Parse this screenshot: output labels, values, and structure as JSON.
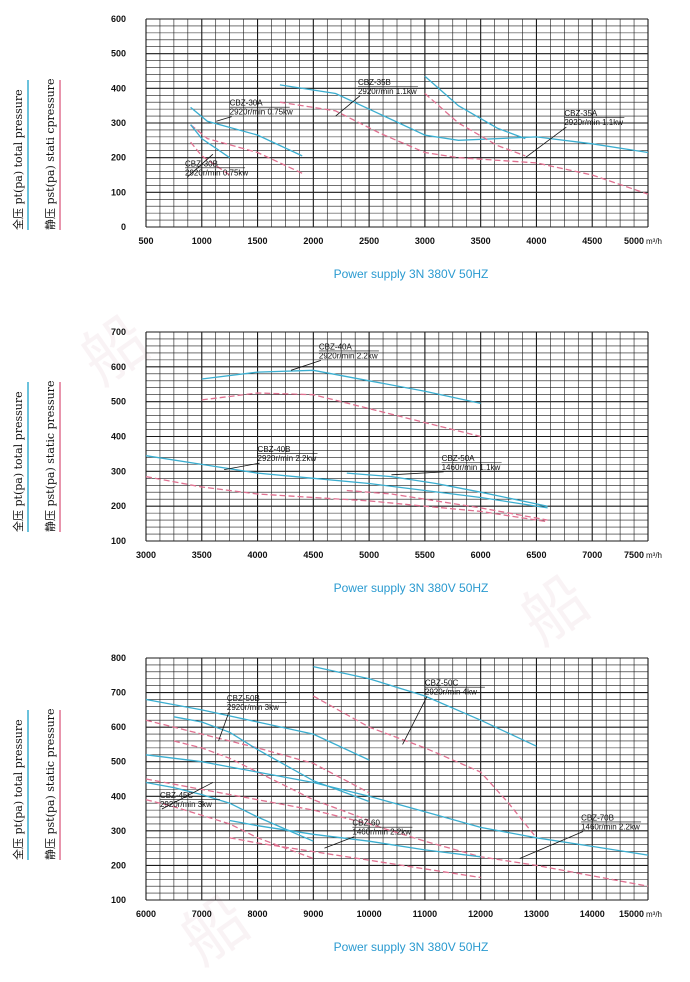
{
  "watermarks": [
    "船",
    "船",
    "船"
  ],
  "colors": {
    "total": "#3aaed0",
    "static": "#e07090",
    "grid": "#1a1a1a",
    "supply": "#2a9ad0"
  },
  "charts": [
    {
      "legend_total": "全压 pt(pa)  total pressure",
      "legend_static": "静压 pst(pa)  stati cpressure",
      "x_unit": "m³/h",
      "power_supply": "Power supply   3N 380V  50HZ",
      "chart_data": {
        "type": "line",
        "xlim": [
          500,
          5000
        ],
        "ylim": [
          0,
          600
        ],
        "x_ticks": [
          500,
          1000,
          1500,
          2000,
          2500,
          3000,
          3500,
          4000,
          4500,
          5000
        ],
        "y_ticks": [
          0,
          100,
          200,
          300,
          400,
          500,
          600
        ],
        "series": [
          {
            "kind": "total",
            "x": [
              900,
              1050,
              1500,
              1900
            ],
            "y": [
              345,
              305,
              265,
              205
            ]
          },
          {
            "kind": "static",
            "x": [
              900,
              1050,
              1500,
              1900
            ],
            "y": [
              295,
              255,
              215,
              155
            ]
          },
          {
            "kind": "total",
            "x": [
              900,
              1000,
              1250
            ],
            "y": [
              295,
              255,
              200
            ]
          },
          {
            "kind": "static",
            "x": [
              900,
              1000,
              1250
            ],
            "y": [
              245,
              205,
              150
            ]
          },
          {
            "kind": "total",
            "x": [
              1700,
              2200,
              2600,
              3000,
              3300,
              4000,
              4500,
              5000
            ],
            "y": [
              410,
              385,
              325,
              265,
              250,
              260,
              240,
              215
            ]
          },
          {
            "kind": "static",
            "x": [
              1700,
              2200,
              2600,
              3000,
              3300,
              4000,
              4500,
              5000
            ],
            "y": [
              360,
              335,
              270,
              215,
              200,
              185,
              150,
              95
            ]
          },
          {
            "kind": "total",
            "x": [
              3000,
              3300,
              3650,
              3900
            ],
            "y": [
              435,
              350,
              285,
              255
            ]
          },
          {
            "kind": "static",
            "x": [
              3000,
              3300,
              3650,
              3900
            ],
            "y": [
              385,
              300,
              235,
              205
            ]
          }
        ]
      },
      "labels": [
        {
          "model": "CBZ-30A",
          "spec": "2920r/min 0.75kw",
          "x": 1250,
          "y": 350,
          "lx": 1130,
          "ly": 305
        },
        {
          "model": "CBZ-30B",
          "spec": "2920r/min 0.75kw",
          "x": 850,
          "y": 175,
          "lx": 1100,
          "ly": 210
        },
        {
          "model": "CBZ-35B",
          "spec": "2920r/min 1.1kw",
          "x": 2400,
          "y": 410,
          "lx": 2200,
          "ly": 320
        },
        {
          "model": "CBZ-35A",
          "spec": "2920r/min 1.1kw",
          "x": 4250,
          "y": 320,
          "lx": 3900,
          "ly": 200
        }
      ]
    },
    {
      "legend_total": "全压 pt(pa)  total pressure",
      "legend_static": "静压 pst(pa)  static pressure",
      "x_unit": "m³/h",
      "power_supply": "Power supply   3N 380V  50HZ",
      "chart_data": {
        "type": "line",
        "xlim": [
          3000,
          7500
        ],
        "ylim": [
          100,
          700
        ],
        "x_ticks": [
          3000,
          3500,
          4000,
          4500,
          5000,
          5500,
          6000,
          6500,
          7000,
          7500
        ],
        "y_ticks": [
          100,
          200,
          300,
          400,
          500,
          600,
          700
        ],
        "series": [
          {
            "kind": "total",
            "x": [
              3500,
              4000,
              4500,
              5000,
              5500,
              6000
            ],
            "y": [
              565,
              585,
              590,
              560,
              530,
              495
            ]
          },
          {
            "kind": "static",
            "x": [
              3500,
              4000,
              4500,
              5000,
              5500,
              6000
            ],
            "y": [
              505,
              525,
              520,
              480,
              440,
              400
            ]
          },
          {
            "kind": "total",
            "x": [
              3000,
              3500,
              4000,
              4500,
              5000,
              5500,
              6000,
              6600
            ],
            "y": [
              345,
              320,
              295,
              280,
              265,
              245,
              225,
              195
            ]
          },
          {
            "kind": "static",
            "x": [
              3000,
              3500,
              4000,
              4500,
              5000,
              5500,
              6000,
              6600
            ],
            "y": [
              285,
              255,
              235,
              225,
              215,
              200,
              185,
              155
            ]
          },
          {
            "kind": "total",
            "x": [
              4800,
              5200,
              5600,
              6000,
              6600
            ],
            "y": [
              295,
              285,
              265,
              240,
              200
            ]
          },
          {
            "kind": "static",
            "x": [
              4800,
              5200,
              5600,
              6000,
              6600
            ],
            "y": [
              245,
              235,
              215,
              195,
              160
            ]
          }
        ]
      },
      "labels": [
        {
          "model": "CBZ-40A",
          "spec": "2920r/min 2.2kw",
          "x": 4550,
          "y": 650,
          "lx": 4300,
          "ly": 590
        },
        {
          "model": "CBZ-40B",
          "spec": "2920r/min 2.2kw",
          "x": 4000,
          "y": 355,
          "lx": 3700,
          "ly": 305
        },
        {
          "model": "CBZ-50A",
          "spec": "1460r/min 1.1kw",
          "x": 5650,
          "y": 330,
          "lx": 5200,
          "ly": 290
        }
      ]
    },
    {
      "legend_total": "全压 pt(pa)  total pressure",
      "legend_static": "静压 pst(pa)  static pressure",
      "x_unit": "m³/h",
      "power_supply": "Power supply   3N 380V  50HZ",
      "chart_data": {
        "type": "line",
        "xlim": [
          6000,
          15000
        ],
        "ylim": [
          100,
          800
        ],
        "x_ticks": [
          6000,
          7000,
          8000,
          9000,
          10000,
          11000,
          12000,
          13000,
          14000,
          15000
        ],
        "y_ticks": [
          100,
          200,
          300,
          400,
          500,
          600,
          700,
          800
        ],
        "series": [
          {
            "kind": "total",
            "x": [
              9000,
              10000,
              11000,
              12000,
              13000
            ],
            "y": [
              775,
              740,
              690,
              620,
              545
            ]
          },
          {
            "kind": "static",
            "x": [
              9000,
              10000,
              11000,
              12000,
              12500,
              13000
            ],
            "y": [
              690,
              600,
              540,
              470,
              380,
              280
            ]
          },
          {
            "kind": "total",
            "x": [
              6000,
              7000,
              8000,
              9000,
              10000
            ],
            "y": [
              680,
              650,
              615,
              580,
              505
            ]
          },
          {
            "kind": "static",
            "x": [
              6000,
              7000,
              8000,
              9000,
              10000
            ],
            "y": [
              620,
              580,
              540,
              495,
              410
            ]
          },
          {
            "kind": "total",
            "x": [
              6500,
              7000,
              7500,
              8000,
              9000,
              10000
            ],
            "y": [
              630,
              615,
              585,
              535,
              445,
              385
            ]
          },
          {
            "kind": "static",
            "x": [
              6500,
              7000,
              7500,
              8000,
              9000,
              10000
            ],
            "y": [
              560,
              540,
              510,
              470,
              390,
              330
            ]
          },
          {
            "kind": "total",
            "x": [
              6000,
              7000,
              8000,
              9000,
              10000,
              11000,
              12000,
              13000,
              14000,
              15000
            ],
            "y": [
              520,
              500,
              470,
              440,
              400,
              355,
              310,
              280,
              255,
              230
            ]
          },
          {
            "kind": "static",
            "x": [
              6000,
              7000,
              8000,
              9000,
              10000,
              11000,
              12000,
              13000,
              14000,
              15000
            ],
            "y": [
              450,
              420,
              390,
              360,
              320,
              270,
              225,
              200,
              170,
              140
            ]
          },
          {
            "kind": "total",
            "x": [
              6000,
              6500,
              7000,
              7500,
              8000,
              8500,
              9000
            ],
            "y": [
              440,
              425,
              405,
              380,
              340,
              305,
              270
            ]
          },
          {
            "kind": "static",
            "x": [
              6000,
              6500,
              7000,
              7500,
              8000,
              8500,
              9000
            ],
            "y": [
              390,
              370,
              345,
              320,
              280,
              250,
              220
            ]
          },
          {
            "kind": "total",
            "x": [
              7500,
              8000,
              9000,
              10000,
              11000,
              12000
            ],
            "y": [
              330,
              315,
              290,
              270,
              245,
              225
            ]
          },
          {
            "kind": "static",
            "x": [
              7500,
              8000,
              9000,
              10000,
              11000,
              12000
            ],
            "y": [
              280,
              265,
              240,
              215,
              190,
              165
            ]
          }
        ]
      },
      "labels": [
        {
          "model": "CBZ-50C",
          "spec": "2920r/min 4kw",
          "x": 11000,
          "y": 720,
          "lx": 10600,
          "ly": 550
        },
        {
          "model": "CBZ-50B",
          "spec": "2920r/min 3kw",
          "x": 7450,
          "y": 675,
          "lx": 7300,
          "ly": 560
        },
        {
          "model": "CBZ-45C",
          "spec": "2920r/min 3kw",
          "x": 6250,
          "y": 395,
          "lx": 7200,
          "ly": 440
        },
        {
          "model": "CBZ-60",
          "spec": "1460r/min 2.2kw",
          "x": 9700,
          "y": 315,
          "lx": 9200,
          "ly": 250
        },
        {
          "model": "CBZ-70B",
          "spec": "1460r/min 2.2kw",
          "x": 13800,
          "y": 330,
          "lx": 12700,
          "ly": 220
        }
      ]
    }
  ]
}
